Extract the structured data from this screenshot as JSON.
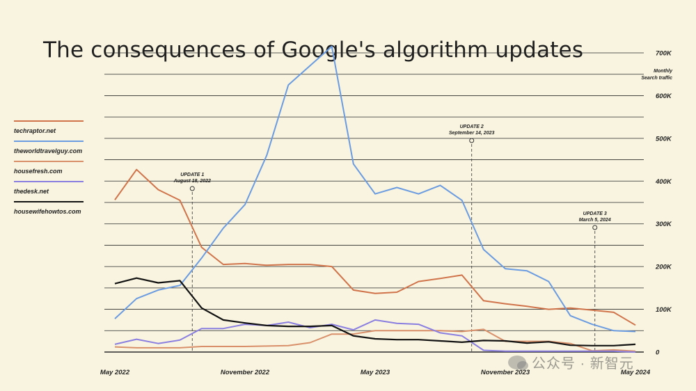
{
  "title": "The consequences of Google's algorithm updates",
  "y_axis_label_line1": "Monthly",
  "y_axis_label_line2": "Search traffic",
  "watermark": "公众号 · 新智元",
  "colors": {
    "background": "#f8f4e0",
    "grid": "#2a2a2a",
    "techraptor": "#d0734a",
    "theworldtravelguy": "#6b9be0",
    "housefresh": "#d9906a",
    "thedesk": "#8a7ee0",
    "housewifehowtos": "#111111"
  },
  "legend": [
    {
      "label": "techraptor.net",
      "color": "#d0734a"
    },
    {
      "label": "theworldtravelguy.com",
      "color": "#6b9be0"
    },
    {
      "label": "housefresh.com",
      "color": "#d9906a"
    },
    {
      "label": "thedesk.net",
      "color": "#8a7ee0"
    },
    {
      "label": "housewifehowtos.com",
      "color": "#111111"
    }
  ],
  "chart_data": {
    "type": "line",
    "title": "The consequences of Google's algorithm updates",
    "ylabel": "Monthly Search traffic",
    "ylim": [
      0,
      700000
    ],
    "y_ticks": [
      {
        "value": 0,
        "label": "0"
      },
      {
        "value": 100000,
        "label": "100K"
      },
      {
        "value": 200000,
        "label": "200K"
      },
      {
        "value": 300000,
        "label": "300K"
      },
      {
        "value": 400000,
        "label": "400K"
      },
      {
        "value": 500000,
        "label": "500K"
      },
      {
        "value": 600000,
        "label": "600K"
      },
      {
        "value": 700000,
        "label": "700K"
      }
    ],
    "x": [
      "2022-05",
      "2022-06",
      "2022-07",
      "2022-08",
      "2022-09",
      "2022-10",
      "2022-11",
      "2022-12",
      "2023-01",
      "2023-02",
      "2023-03",
      "2023-04",
      "2023-05",
      "2023-06",
      "2023-07",
      "2023-08",
      "2023-09",
      "2023-10",
      "2023-11",
      "2023-12",
      "2024-01",
      "2024-02",
      "2024-03",
      "2024-04",
      "2024-05"
    ],
    "x_ticks": [
      {
        "index": 0,
        "label": "May 2022"
      },
      {
        "index": 6,
        "label": "November 2022"
      },
      {
        "index": 12,
        "label": "May 2023"
      },
      {
        "index": 18,
        "label": "November 2023"
      },
      {
        "index": 24,
        "label": "May 2024"
      }
    ],
    "series": [
      {
        "name": "techraptor.net",
        "color": "#d0734a",
        "values": [
          356000,
          427000,
          380000,
          355000,
          245000,
          205000,
          207000,
          203000,
          205000,
          205000,
          200000,
          145000,
          137000,
          140000,
          165000,
          172000,
          180000,
          120000,
          113000,
          107000,
          100000,
          103000,
          98000,
          93000,
          63000
        ]
      },
      {
        "name": "theworldtravelguy.com",
        "color": "#6b9be0",
        "values": [
          78000,
          125000,
          145000,
          156000,
          220000,
          290000,
          345000,
          460000,
          625000,
          670000,
          715000,
          440000,
          370000,
          385000,
          370000,
          390000,
          355000,
          240000,
          195000,
          190000,
          165000,
          85000,
          65000,
          50000,
          48000
        ]
      },
      {
        "name": "housefresh.com",
        "color": "#d9906a",
        "values": [
          12000,
          10000,
          10000,
          10000,
          13000,
          13000,
          13000,
          14000,
          15000,
          22000,
          42000,
          42000,
          50000,
          50000,
          50000,
          50000,
          48000,
          53000,
          25000,
          25000,
          25000,
          20000,
          3000,
          5000,
          2000
        ]
      },
      {
        "name": "thedesk.net",
        "color": "#8a7ee0",
        "values": [
          18000,
          30000,
          20000,
          28000,
          55000,
          55000,
          65000,
          62000,
          70000,
          57000,
          65000,
          52000,
          75000,
          67000,
          65000,
          45000,
          38000,
          4000,
          2000,
          2000,
          2000,
          2000,
          2000,
          2000,
          0
        ]
      },
      {
        "name": "housewifehowtos.com",
        "color": "#111111",
        "values": [
          160000,
          173000,
          162000,
          167000,
          103000,
          75000,
          68000,
          62000,
          60000,
          60000,
          62000,
          38000,
          31000,
          29000,
          29000,
          26000,
          23000,
          27000,
          26000,
          21000,
          24000,
          16000,
          15000,
          15000,
          18000
        ]
      }
    ],
    "annotations": [
      {
        "label": "UPDATE 1",
        "date": "August 18, 2022",
        "x_index": 3.57
      },
      {
        "label": "UPDATE 2",
        "date": "September 14, 2023",
        "x_index": 16.45
      },
      {
        "label": "UPDATE 3",
        "date": "March 5, 2024",
        "x_index": 22.13
      }
    ],
    "grid": true,
    "legend_position": "left"
  }
}
